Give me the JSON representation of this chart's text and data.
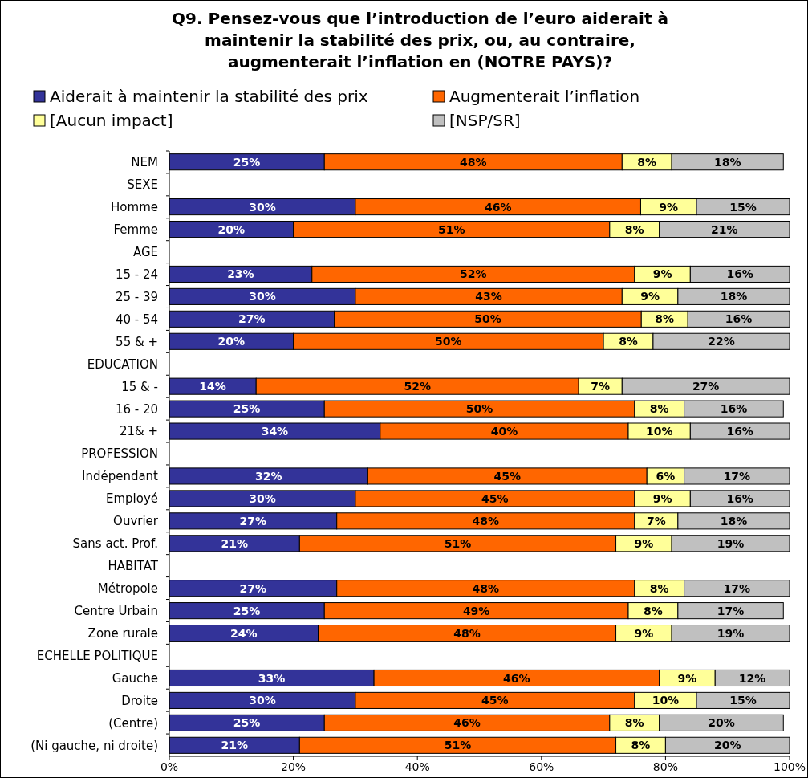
{
  "chart_data": {
    "type": "bar",
    "orientation": "horizontal",
    "stacked": true,
    "title": "Q9. Pensez-vous que l’introduction de l’euro aiderait à\nmaintenir la stabilité des prix, ou, au contraire,\naugmenterait l’inflation en (NOTRE PAYS)?",
    "legend": "top",
    "categories": [
      "NEM",
      "SEXE",
      "Homme",
      "Femme",
      "AGE",
      "15 - 24",
      "25 - 39",
      "40 - 54",
      "55 & +",
      "EDUCATION",
      "15 & -",
      "16 - 20",
      "21& +",
      "PROFESSION",
      "Indépendant",
      "Employé",
      "Ouvrier",
      "Sans act. Prof.",
      "HABITAT",
      "Métropole",
      "Centre Urbain",
      "Zone rurale",
      "ECHELLE POLITIQUE",
      "Gauche",
      "Droite",
      "(Centre)",
      "(Ni gauche, ni droite)"
    ],
    "xlim": [
      0,
      100
    ],
    "xticks": [
      {
        "value": 0,
        "label": "0%"
      },
      {
        "value": 20,
        "label": "20%"
      },
      {
        "value": 40,
        "label": "40%"
      },
      {
        "value": 60,
        "label": "60%"
      },
      {
        "value": 80,
        "label": "80%"
      },
      {
        "value": 100,
        "label": "100%"
      }
    ],
    "series": [
      {
        "name": "Aiderait à maintenir la stabilité des prix",
        "color": "#333399",
        "values": [
          25,
          null,
          30,
          20,
          null,
          23,
          30,
          26.6,
          20,
          null,
          14,
          25,
          34,
          null,
          32,
          30,
          27,
          21,
          null,
          27,
          25,
          24,
          null,
          33,
          30,
          25,
          21
        ],
        "value_labels": [
          "25%",
          null,
          "30%",
          "20%",
          null,
          "23%",
          "30%",
          "27%",
          "20%",
          null,
          "14%",
          "25%",
          "34%",
          null,
          "32%",
          "30%",
          "27%",
          "21%",
          null,
          "27%",
          "25%",
          "24%",
          null,
          "33%",
          "30%",
          "25%",
          "21%"
        ]
      },
      {
        "name": "Augmenterait l’inflation",
        "color": "#ff6600",
        "values": [
          48,
          null,
          46,
          51,
          null,
          52,
          43,
          49.5,
          50,
          null,
          52,
          50,
          40,
          null,
          45,
          45,
          48,
          51,
          null,
          48,
          49,
          48,
          null,
          46,
          45,
          46,
          51
        ],
        "value_labels": [
          "48%",
          null,
          "46%",
          "51%",
          null,
          "52%",
          "43%",
          "50%",
          "50%",
          null,
          "52%",
          "50%",
          "40%",
          null,
          "45%",
          "45%",
          "48%",
          "51%",
          null,
          "48%",
          "49%",
          "48%",
          null,
          "46%",
          "45%",
          "46%",
          "51%"
        ]
      },
      {
        "name": "[Aucun impact]",
        "color": "#ffff99",
        "values": [
          8,
          null,
          9,
          8,
          null,
          9,
          9,
          7.5,
          8,
          null,
          7,
          8,
          10,
          null,
          6,
          9,
          7,
          9,
          null,
          8,
          8,
          9,
          null,
          9,
          10,
          8,
          8
        ],
        "value_labels": [
          "8%",
          null,
          "9%",
          "8%",
          null,
          "9%",
          "9%",
          "8%",
          "8%",
          null,
          "7%",
          "8%",
          "10%",
          null,
          "6%",
          "9%",
          "7%",
          "9%",
          null,
          "8%",
          "8%",
          "9%",
          null,
          "9%",
          "10%",
          "8%",
          "8%"
        ]
      },
      {
        "name": "[NSP/SR]",
        "color": "#c0c0c0",
        "values": [
          18,
          null,
          15,
          21,
          null,
          16,
          18,
          16.4,
          22,
          null,
          27,
          16,
          16,
          null,
          17,
          16,
          18,
          19,
          null,
          17,
          17,
          19,
          null,
          12,
          15,
          20,
          20
        ],
        "value_labels": [
          "18%",
          null,
          "15%",
          "21%",
          null,
          "16%",
          "18%",
          "16%",
          "22%",
          null,
          "27%",
          "16%",
          "16%",
          null,
          "17%",
          "16%",
          "18%",
          "19%",
          null,
          "17%",
          "17%",
          "19%",
          null,
          "12%",
          "15%",
          "20%",
          "20%"
        ]
      }
    ]
  }
}
